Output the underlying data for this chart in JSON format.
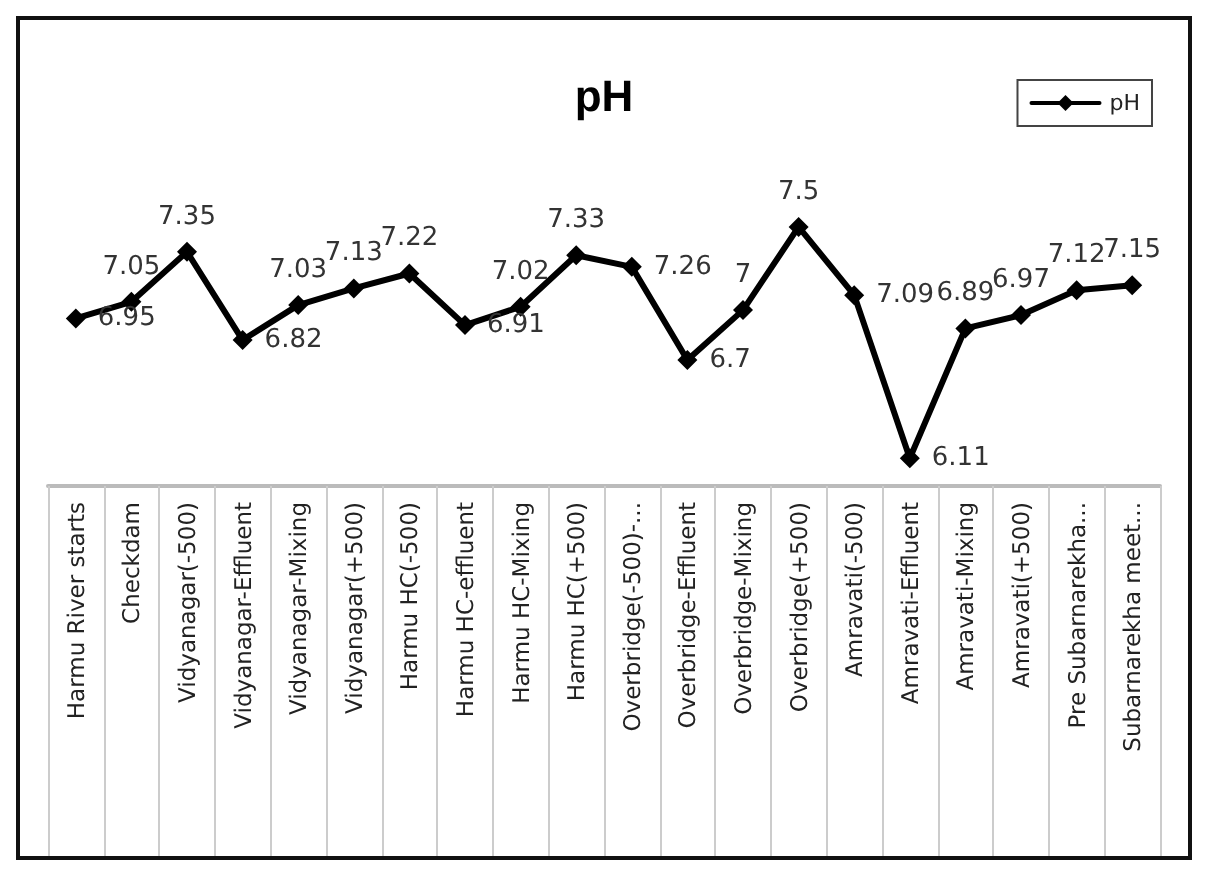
{
  "chart_data": {
    "type": "line",
    "title": "pH",
    "categories": [
      "Harmu River starts",
      "Checkdam",
      "Vidyanagar(-500)",
      "Vidyanagar-Effluent",
      "Vidyanagar-Mixing",
      "Vidyanagar(+500)",
      "Harmu HC(-500)",
      "Harmu HC-effluent",
      "Harmu HC-Mixing",
      "Harmu HC(+500)",
      "Overbridge(-500)-...",
      "Overbridge-Effluent",
      "Overbridge-Mixing",
      "Overbridge(+500)",
      "Amravati(-500)",
      "Amravati-Effluent",
      "Amravati-Mixing",
      "Amravati(+500)",
      "Pre Subarnarekha...",
      "Subarnarekha meet..."
    ],
    "series": [
      {
        "name": "pH",
        "color": "#000000",
        "values": [
          6.95,
          7.05,
          7.35,
          6.82,
          7.03,
          7.13,
          7.22,
          6.91,
          7.02,
          7.33,
          7.26,
          6.7,
          7,
          7.5,
          7.09,
          6.11,
          6.89,
          6.97,
          7.12,
          7.15
        ]
      }
    ],
    "data_labels": true,
    "marker": "diamond",
    "line_style": "solid",
    "legend": "top right",
    "grid": false
  }
}
